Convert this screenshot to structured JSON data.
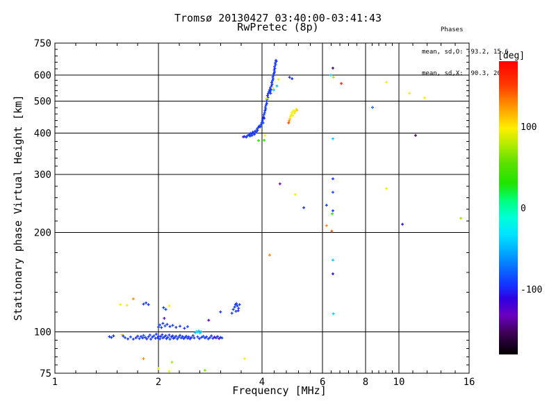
{
  "chart_data": {
    "type": "scatter",
    "title": "Tromsø 20130427 03:40:00-03:41:43",
    "subtitle": "RwPretec (8p)",
    "annotations": {
      "heading": "Phases",
      "o_stats": "mean, sd,O: -93.2, 15.6",
      "x_stats": "mean, sd,X:  90.3, 20.2"
    },
    "xlabel": "Frequency [MHz]",
    "ylabel": "Stationary phase Virtual Height [km]",
    "x_axis": {
      "scale": "log",
      "range": [
        1,
        16
      ],
      "tick_labels": [
        1,
        2,
        4,
        6,
        8,
        10,
        16
      ],
      "gridlines": [
        2,
        4,
        6,
        8,
        10
      ],
      "minor_per_interval": 4
    },
    "y_axis": {
      "scale": "log",
      "range": [
        75,
        750
      ],
      "tick_labels": [
        75,
        100,
        200,
        300,
        400,
        500,
        600,
        750
      ],
      "gridlines": [
        100,
        200,
        300,
        400,
        500,
        600
      ],
      "minor_per_interval": 4
    },
    "colorbar": {
      "label": "[deg]",
      "unit": "deg",
      "range": [
        -180,
        180
      ],
      "tick_labels": [
        100,
        0,
        -100
      ],
      "stops": [
        [
          -180,
          "#000000"
        ],
        [
          -155,
          "#3a0050"
        ],
        [
          -132,
          "#6a00c0"
        ],
        [
          -112,
          "#3000e0"
        ],
        [
          -95,
          "#1432ff"
        ],
        [
          -75,
          "#0a6aff"
        ],
        [
          -52,
          "#00b0ff"
        ],
        [
          -32,
          "#00e4ff"
        ],
        [
          -12,
          "#00ffd8"
        ],
        [
          8,
          "#00ff80"
        ],
        [
          30,
          "#20e400"
        ],
        [
          55,
          "#5ce000"
        ],
        [
          78,
          "#b4ec00"
        ],
        [
          98,
          "#ffee00"
        ],
        [
          125,
          "#ff9400"
        ],
        [
          150,
          "#ff3c00"
        ],
        [
          180,
          "#ff0000"
        ]
      ]
    },
    "points": [
      [
        1.44,
        96.8,
        -95
      ],
      [
        1.46,
        96.2,
        -92
      ],
      [
        1.48,
        97.3,
        -98
      ],
      [
        1.57,
        98.0,
        108
      ],
      [
        1.58,
        97.2,
        -95
      ],
      [
        1.6,
        96.1,
        -90
      ],
      [
        1.63,
        95.3,
        -95
      ],
      [
        1.66,
        96.6,
        -87
      ],
      [
        1.69,
        95.1,
        -95
      ],
      [
        1.72,
        96.0,
        -101
      ],
      [
        1.74,
        97.1,
        -95
      ],
      [
        1.76,
        95.5,
        -90
      ],
      [
        1.78,
        96.9,
        -95
      ],
      [
        1.8,
        95.9,
        -95
      ],
      [
        1.81,
        97.7,
        -84
      ],
      [
        1.83,
        96.3,
        -95
      ],
      [
        1.85,
        95.3,
        -101
      ],
      [
        1.87,
        96.7,
        -95
      ],
      [
        1.89,
        97.9,
        -91
      ],
      [
        1.9,
        95.1,
        -95
      ],
      [
        1.92,
        96.5,
        -95
      ],
      [
        1.94,
        97.3,
        -87
      ],
      [
        1.96,
        95.7,
        -95
      ],
      [
        1.97,
        98.5,
        -95
      ],
      [
        1.99,
        96.1,
        -96
      ],
      [
        2.0,
        97.1,
        -95
      ],
      [
        2.02,
        95.3,
        -91
      ],
      [
        2.03,
        96.9,
        -101
      ],
      [
        2.05,
        98.1,
        -95
      ],
      [
        2.06,
        95.9,
        -95
      ],
      [
        2.08,
        96.7,
        -89
      ],
      [
        2.1,
        97.5,
        -95
      ],
      [
        2.11,
        95.5,
        -96
      ],
      [
        2.13,
        96.3,
        -95
      ],
      [
        2.15,
        97.9,
        -95
      ],
      [
        2.16,
        95.1,
        -87
      ],
      [
        2.18,
        96.7,
        -95
      ],
      [
        2.2,
        97.3,
        -95
      ],
      [
        2.21,
        95.7,
        -101
      ],
      [
        2.23,
        96.1,
        -95
      ],
      [
        2.25,
        97.1,
        -91
      ],
      [
        2.27,
        95.3,
        -95
      ],
      [
        2.29,
        96.5,
        -95
      ],
      [
        2.31,
        97.7,
        -96
      ],
      [
        2.33,
        95.9,
        -89
      ],
      [
        2.35,
        96.9,
        -95
      ],
      [
        2.37,
        95.5,
        -95
      ],
      [
        2.39,
        96.3,
        -95
      ],
      [
        2.41,
        97.1,
        -87
      ],
      [
        2.43,
        95.7,
        -95
      ],
      [
        2.45,
        96.7,
        -95
      ],
      [
        2.47,
        95.3,
        -96
      ],
      [
        2.49,
        96.1,
        -101
      ],
      [
        2.52,
        97.5,
        -95
      ],
      [
        2.54,
        95.9,
        -95
      ],
      [
        2.56,
        99.5,
        -44
      ],
      [
        2.58,
        100.3,
        -39
      ],
      [
        2.6,
        99.9,
        -34
      ],
      [
        2.62,
        100.7,
        -46
      ],
      [
        2.64,
        99.3,
        -40
      ],
      [
        2.66,
        100.1,
        -52
      ],
      [
        2.6,
        96.7,
        -89
      ],
      [
        2.63,
        95.5,
        -95
      ],
      [
        2.67,
        96.3,
        -95
      ],
      [
        2.7,
        97.1,
        -84
      ],
      [
        2.73,
        95.9,
        -95
      ],
      [
        2.76,
        96.7,
        -95
      ],
      [
        2.79,
        95.3,
        -91
      ],
      [
        2.82,
        96.1,
        -95
      ],
      [
        2.85,
        97.3,
        -95
      ],
      [
        2.88,
        95.7,
        -96
      ],
      [
        2.91,
        96.5,
        -129
      ],
      [
        2.94,
        95.9,
        -95
      ],
      [
        2.97,
        96.9,
        -95
      ],
      [
        3.0,
        95.5,
        -136
      ],
      [
        3.03,
        96.3,
        -95
      ],
      [
        3.06,
        95.9,
        -91
      ],
      [
        2.0,
        103.5,
        -95
      ],
      [
        2.02,
        105.0,
        -90
      ],
      [
        2.04,
        103.1,
        -95
      ],
      [
        2.06,
        106.1,
        -96
      ],
      [
        2.09,
        104.3,
        -87
      ],
      [
        2.12,
        105.5,
        -95
      ],
      [
        2.16,
        103.9,
        -95
      ],
      [
        2.2,
        104.7,
        -91
      ],
      [
        2.25,
        103.3,
        -95
      ],
      [
        2.31,
        104.1,
        -95
      ],
      [
        2.38,
        102.6,
        -95
      ],
      [
        2.43,
        103.8,
        -90
      ],
      [
        1.55,
        121.0,
        96
      ],
      [
        1.62,
        120.5,
        94
      ],
      [
        1.69,
        126.0,
        127
      ],
      [
        1.81,
        121.5,
        -95
      ],
      [
        1.84,
        122.5,
        -91
      ],
      [
        1.87,
        121.0,
        -95
      ],
      [
        2.15,
        120.0,
        95
      ],
      [
        2.07,
        118.5,
        -95
      ],
      [
        2.1,
        117.0,
        -89
      ],
      [
        2.08,
        110.0,
        -134
      ],
      [
        2.8,
        108.5,
        -136
      ],
      [
        3.03,
        115.0,
        -95
      ],
      [
        3.27,
        114.0,
        -95
      ],
      [
        3.3,
        117.0,
        -90
      ],
      [
        3.33,
        119.0,
        -95
      ],
      [
        3.35,
        121.0,
        -95
      ],
      [
        3.37,
        122.0,
        -87
      ],
      [
        3.39,
        120.0,
        -95
      ],
      [
        3.42,
        118.0,
        -96
      ],
      [
        3.44,
        121.0,
        -91
      ],
      [
        3.41,
        116.0,
        -101
      ],
      [
        3.36,
        115.5,
        -95
      ],
      [
        1.81,
        83.0,
        127
      ],
      [
        2.19,
        81.0,
        72
      ],
      [
        2.0,
        77.5,
        96
      ],
      [
        2.15,
        76.0,
        94
      ],
      [
        2.73,
        76.5,
        62
      ],
      [
        3.56,
        83.0,
        95
      ],
      [
        3.53,
        390,
        -134
      ],
      [
        3.56,
        391,
        -95
      ],
      [
        3.6,
        389,
        -95
      ],
      [
        3.63,
        393,
        -90
      ],
      [
        3.67,
        396,
        -95
      ],
      [
        3.7,
        400,
        -92
      ],
      [
        3.73,
        398,
        -95
      ],
      [
        3.76,
        403,
        -96
      ],
      [
        3.79,
        401,
        -87
      ],
      [
        3.82,
        406,
        -95
      ],
      [
        3.85,
        404,
        -95
      ],
      [
        3.8,
        397,
        -101
      ],
      [
        3.74,
        394,
        -95
      ],
      [
        3.69,
        392,
        -95
      ],
      [
        3.88,
        408,
        -95
      ],
      [
        3.91,
        380,
        34
      ],
      [
        4.06,
        381,
        36
      ],
      [
        4.08,
        394,
        96
      ],
      [
        3.87,
        412,
        -95
      ],
      [
        3.9,
        416,
        -90
      ],
      [
        3.92,
        420,
        -95
      ],
      [
        3.95,
        418,
        -95
      ],
      [
        3.97,
        424,
        -91
      ],
      [
        3.99,
        430,
        -95
      ],
      [
        4.01,
        436,
        -95
      ],
      [
        4.03,
        430,
        -87
      ],
      [
        4.02,
        442,
        -95
      ],
      [
        4.04,
        448,
        -96
      ],
      [
        4.06,
        444,
        -101
      ],
      [
        4.05,
        455,
        -95
      ],
      [
        4.07,
        461,
        -91
      ],
      [
        4.08,
        468,
        -95
      ],
      [
        4.1,
        474,
        -95
      ],
      [
        4.09,
        480,
        -87
      ],
      [
        4.11,
        487,
        -95
      ],
      [
        4.13,
        493,
        -95
      ],
      [
        4.12,
        500,
        -91
      ],
      [
        4.14,
        507,
        -95
      ],
      [
        4.16,
        513,
        -95
      ],
      [
        4.15,
        520,
        -101
      ],
      [
        4.17,
        527,
        -95
      ],
      [
        4.19,
        534,
        -91
      ],
      [
        4.21,
        541,
        -95
      ],
      [
        4.22,
        535,
        -96
      ],
      [
        4.24,
        528,
        -87
      ],
      [
        4.25,
        542,
        -95
      ],
      [
        4.23,
        549,
        -95
      ],
      [
        4.26,
        556,
        -91
      ],
      [
        4.28,
        563,
        -95
      ],
      [
        4.27,
        570,
        -95
      ],
      [
        4.29,
        577,
        -87
      ],
      [
        4.31,
        584,
        -95
      ],
      [
        4.3,
        592,
        -96
      ],
      [
        4.32,
        599,
        -91
      ],
      [
        4.33,
        606,
        -95
      ],
      [
        4.35,
        613,
        -95
      ],
      [
        4.34,
        621,
        -90
      ],
      [
        4.36,
        628,
        -95
      ],
      [
        4.35,
        636,
        -95
      ],
      [
        4.38,
        645,
        -91
      ],
      [
        4.37,
        652,
        -95
      ],
      [
        4.4,
        660,
        -95
      ],
      [
        4.39,
        665,
        -89
      ],
      [
        4.33,
        541,
        -40
      ],
      [
        4.42,
        556,
        -45
      ],
      [
        4.29,
        549,
        95
      ],
      [
        4.47,
        582,
        94
      ],
      [
        4.13,
        510,
        96
      ],
      [
        4.81,
        591,
        -95
      ],
      [
        4.89,
        585,
        -100
      ],
      [
        4.78,
        430,
        147
      ],
      [
        4.8,
        436,
        128
      ],
      [
        4.82,
        442,
        112
      ],
      [
        4.84,
        449,
        96
      ],
      [
        4.87,
        455,
        95
      ],
      [
        4.89,
        462,
        94
      ],
      [
        4.92,
        452,
        95
      ],
      [
        4.94,
        468,
        96
      ],
      [
        4.97,
        460,
        95
      ],
      [
        5.0,
        466,
        94
      ],
      [
        5.03,
        473,
        95
      ],
      [
        5.06,
        470,
        110
      ],
      [
        6.43,
        630,
        -150
      ],
      [
        6.34,
        600,
        -40
      ],
      [
        6.45,
        591,
        72
      ],
      [
        6.8,
        566,
        166
      ],
      [
        6.43,
        385,
        -42
      ],
      [
        6.43,
        291,
        -95
      ],
      [
        6.43,
        265,
        -90
      ],
      [
        6.16,
        242,
        -95
      ],
      [
        6.43,
        233,
        -96
      ],
      [
        6.4,
        228,
        34
      ],
      [
        6.16,
        210,
        128
      ],
      [
        6.38,
        202,
        148
      ],
      [
        6.43,
        165,
        -40
      ],
      [
        6.43,
        150,
        -112
      ],
      [
        6.45,
        113.5,
        -42
      ],
      [
        4.51,
        281,
        -134
      ],
      [
        5.0,
        261,
        95
      ],
      [
        5.29,
        238,
        -95
      ],
      [
        4.21,
        171,
        128
      ],
      [
        9.2,
        571,
        95
      ],
      [
        8.38,
        479,
        -75
      ],
      [
        9.2,
        272,
        94
      ],
      [
        10.24,
        212,
        -112
      ],
      [
        10.73,
        528,
        95
      ],
      [
        11.18,
        394,
        -150
      ],
      [
        11.88,
        512,
        96
      ],
      [
        15.13,
        221,
        72
      ]
    ]
  }
}
